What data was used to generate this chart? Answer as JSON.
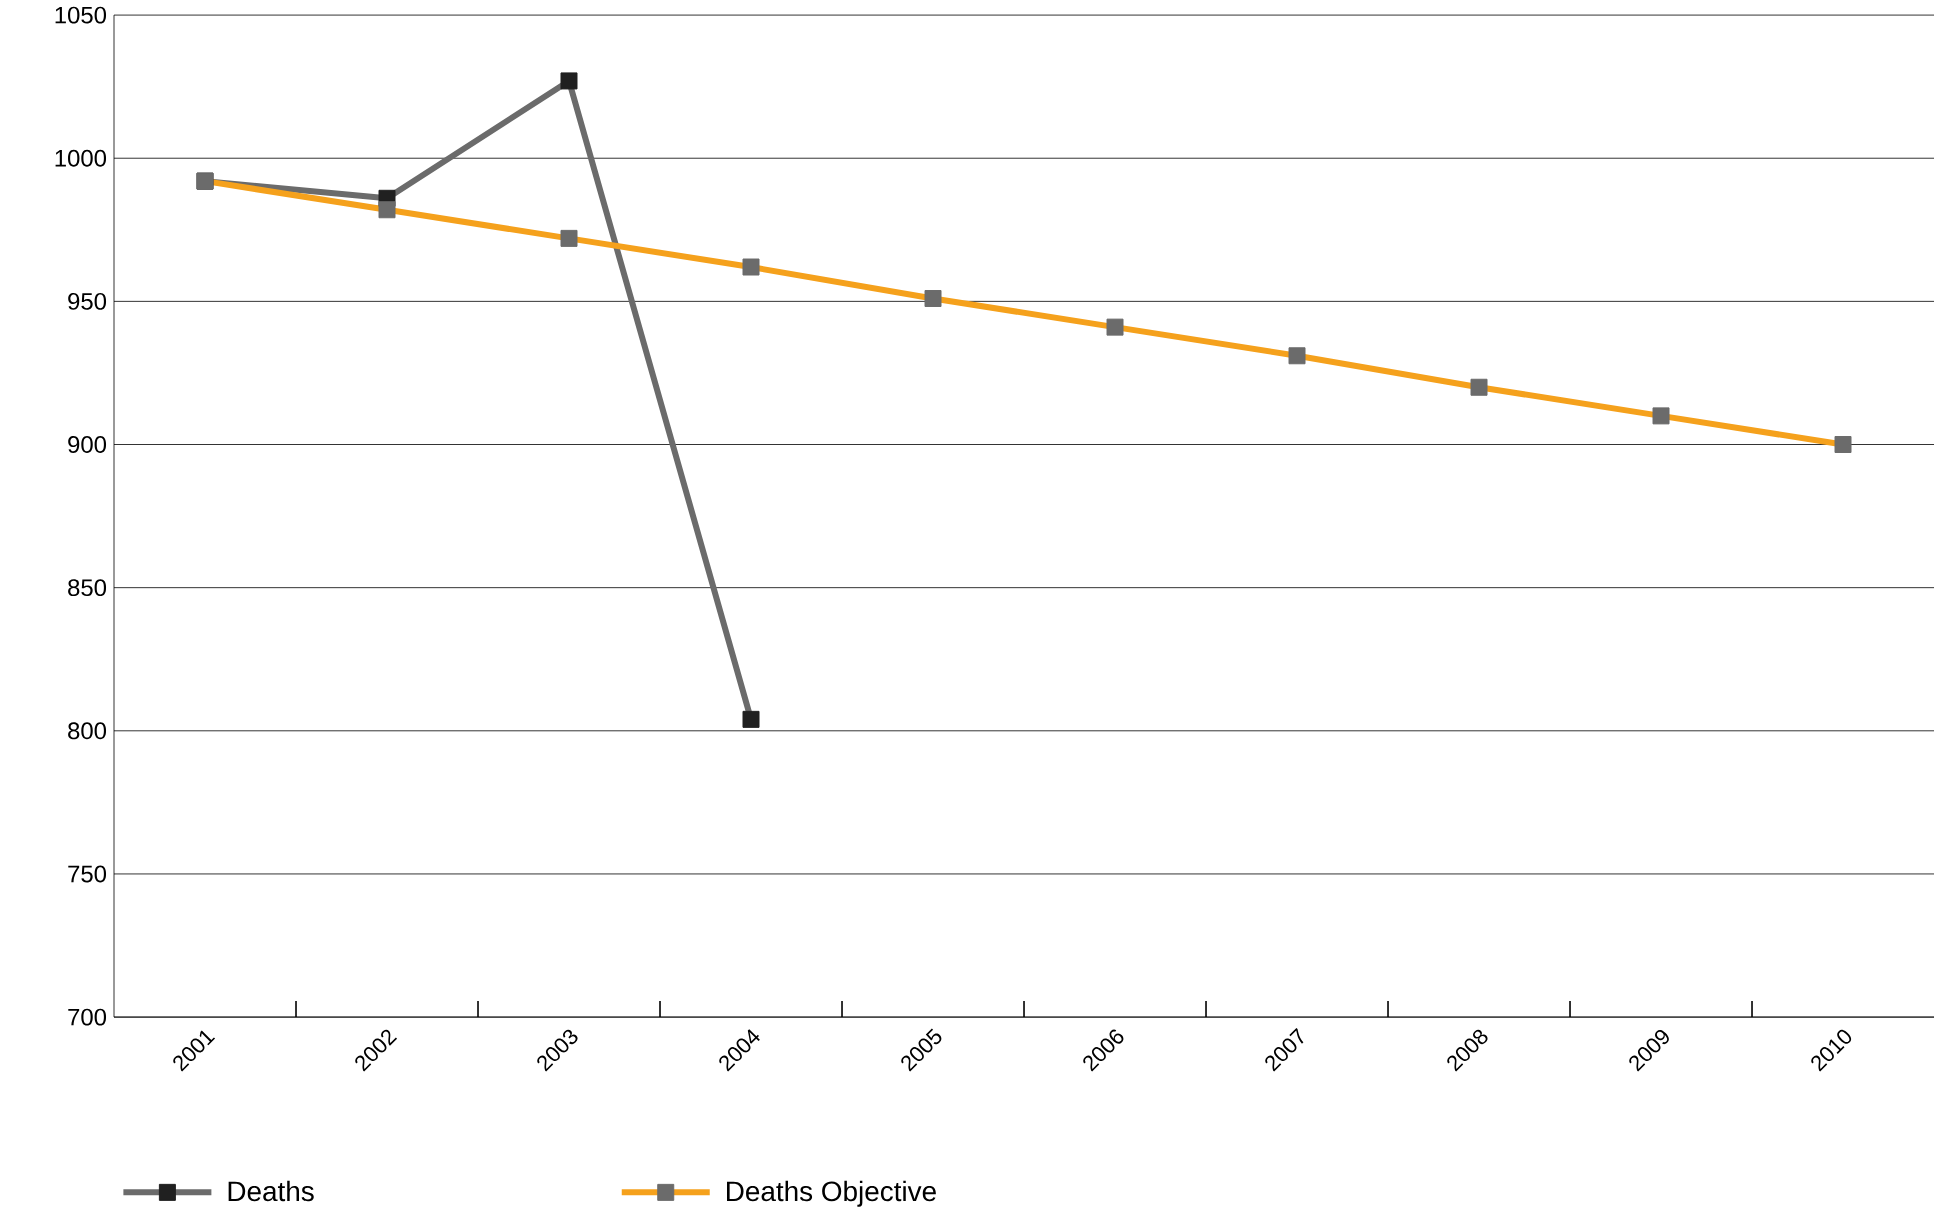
{
  "chart_data": {
    "type": "line",
    "categories": [
      "2001",
      "2002",
      "2003",
      "2004",
      "2005",
      "2006",
      "2007",
      "2008",
      "2009",
      "2010"
    ],
    "series": [
      {
        "name": "Deaths",
        "color": "#6b6b6b",
        "values": [
          992,
          986,
          1027,
          804,
          null,
          null,
          null,
          null,
          null,
          null
        ]
      },
      {
        "name": "Deaths Objective",
        "color": "#f5a11c",
        "values": [
          992,
          982,
          972,
          962,
          951,
          941,
          931,
          920,
          910,
          900
        ]
      }
    ],
    "ylim": [
      700,
      1050
    ],
    "yticks": [
      700,
      750,
      800,
      850,
      900,
      950,
      1000,
      1050
    ],
    "grid": "y",
    "legend": "bottom left",
    "marker": "square",
    "line_style": "solid"
  }
}
